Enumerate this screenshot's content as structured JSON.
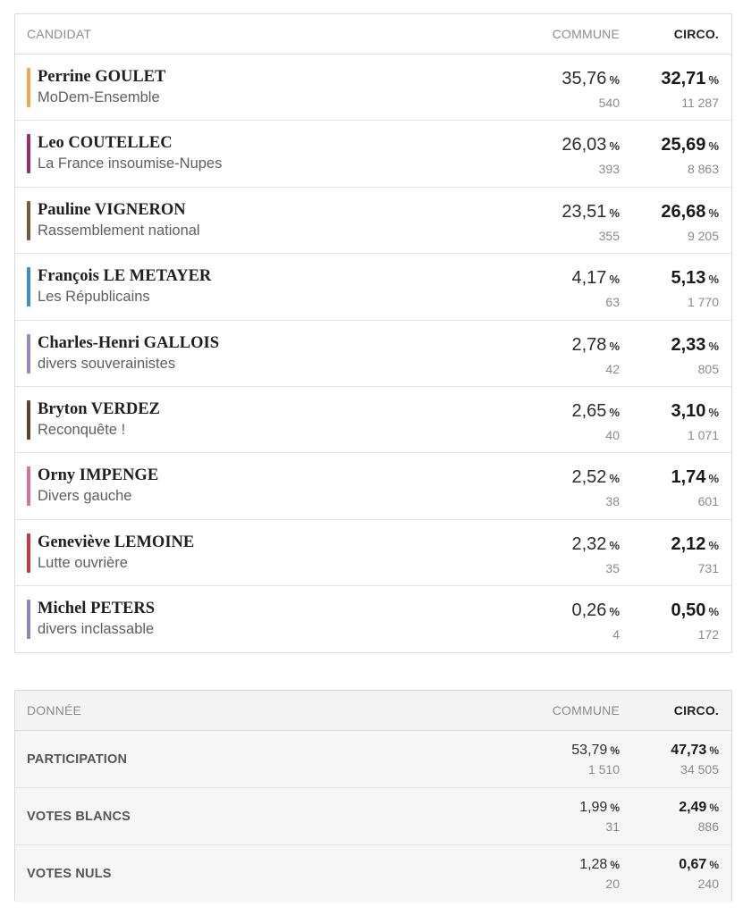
{
  "candidates_table": {
    "headers": {
      "label": "CANDIDAT",
      "commune": "COMMUNE",
      "circo": "CIRCO."
    },
    "rows": [
      {
        "name": "Perrine GOULET",
        "party": "MoDem-Ensemble",
        "color": "#f0a84a",
        "commune_pct": "35,76",
        "commune_votes": "540",
        "circo_pct": "32,71",
        "circo_votes": "11 287"
      },
      {
        "name": "Leo COUTELLEC",
        "party": "La France insoumise-Nupes",
        "color": "#9b2d6e",
        "commune_pct": "26,03",
        "commune_votes": "393",
        "circo_pct": "25,69",
        "circo_votes": "8 863"
      },
      {
        "name": "Pauline VIGNERON",
        "party": "Rassemblement national",
        "color": "#7a5a36",
        "commune_pct": "23,51",
        "commune_votes": "355",
        "circo_pct": "26,68",
        "circo_votes": "9 205"
      },
      {
        "name": "François LE METAYER",
        "party": "Les Républicains",
        "color": "#3a8fc9",
        "commune_pct": "4,17",
        "commune_votes": "63",
        "circo_pct": "5,13",
        "circo_votes": "1 770"
      },
      {
        "name": "Charles-Henri GALLOIS",
        "party": "divers souverainistes",
        "color": "#9a84c0",
        "commune_pct": "2,78",
        "commune_votes": "42",
        "circo_pct": "2,33",
        "circo_votes": "805"
      },
      {
        "name": "Bryton VERDEZ",
        "party": "Reconquête !",
        "color": "#5a4626",
        "commune_pct": "2,65",
        "commune_votes": "40",
        "circo_pct": "3,10",
        "circo_votes": "1 071"
      },
      {
        "name": "Orny IMPENGE",
        "party": "Divers gauche",
        "color": "#d7709c",
        "commune_pct": "2,52",
        "commune_votes": "38",
        "circo_pct": "1,74",
        "circo_votes": "601"
      },
      {
        "name": "Geneviève LEMOINE",
        "party": "Lutte ouvrière",
        "color": "#c83a3a",
        "commune_pct": "2,32",
        "commune_votes": "35",
        "circo_pct": "2,12",
        "circo_votes": "731"
      },
      {
        "name": "Michel PETERS",
        "party": "divers inclassable",
        "color": "#9282be",
        "commune_pct": "0,26",
        "commune_votes": "4",
        "circo_pct": "0,50",
        "circo_votes": "172"
      }
    ]
  },
  "data_table": {
    "headers": {
      "label": "DONNÉE",
      "commune": "COMMUNE",
      "circo": "CIRCO."
    },
    "rows": [
      {
        "label": "PARTICIPATION",
        "commune_pct": "53,79",
        "commune_votes": "1 510",
        "circo_pct": "47,73",
        "circo_votes": "34 505"
      },
      {
        "label": "VOTES BLANCS",
        "commune_pct": "1,99",
        "commune_votes": "31",
        "circo_pct": "2,49",
        "circo_votes": "886"
      },
      {
        "label": "VOTES NULS",
        "commune_pct": "1,28",
        "commune_votes": "20",
        "circo_pct": "0,67",
        "circo_votes": "240"
      }
    ]
  },
  "percent_sign": "%"
}
